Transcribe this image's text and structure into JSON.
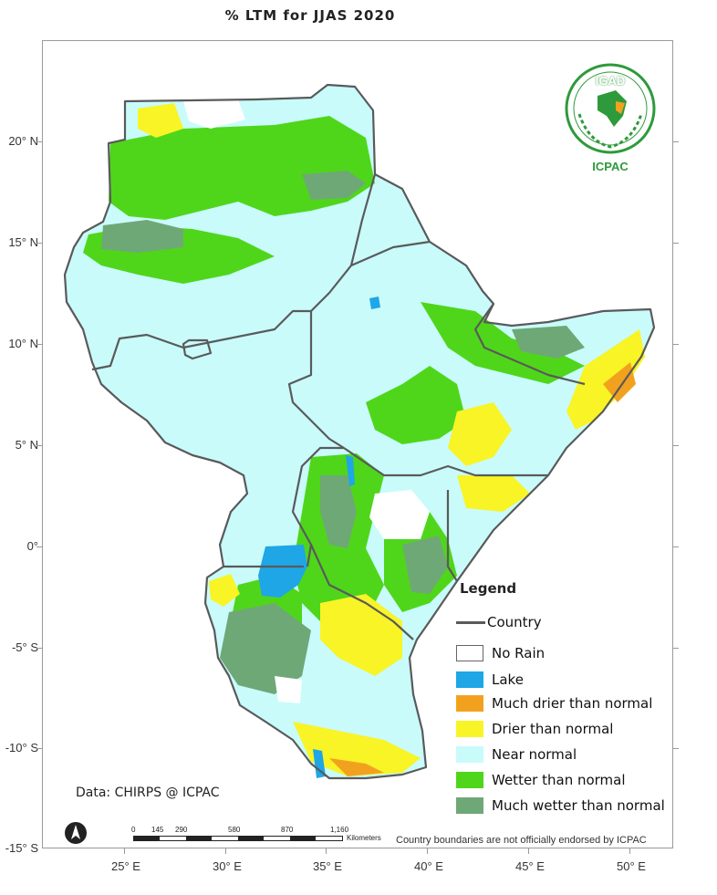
{
  "title": "% LTM for JJAS 2020",
  "axes": {
    "y_ticks": [
      "20° N",
      "15° N",
      "10° N",
      "5° N",
      "0°",
      "-5° S",
      "-10° S",
      "-15° S"
    ],
    "x_ticks": [
      "25° E",
      "30° E",
      "35° E",
      "40° E",
      "45° E",
      "50° E"
    ]
  },
  "legend": {
    "title": "Legend",
    "country_label": "Country",
    "items": [
      {
        "label": "No Rain",
        "color": "#ffffff"
      },
      {
        "label": "Lake",
        "color": "#1ea6e6"
      },
      {
        "label": "Much drier than normal",
        "color": "#f2a11f"
      },
      {
        "label": "Drier than normal",
        "color": "#f8f426"
      },
      {
        "label": "Near normal",
        "color": "#c9fbfb"
      },
      {
        "label": "Wetter than normal",
        "color": "#4fd61a"
      },
      {
        "label": "Much wetter than normal",
        "color": "#6fa877"
      }
    ]
  },
  "logo": {
    "name": "IGAD",
    "org": "ICPAC"
  },
  "data_credit": "Data: CHIRPS @ ICPAC",
  "scale_bar": {
    "labels": [
      "0",
      "145",
      "290",
      "580",
      "870",
      "1,160"
    ],
    "unit": "Kilometers"
  },
  "disclaimer": "Country boundaries are not officially endorsed by ICPAC",
  "colors": {
    "border": "#5a5a5a",
    "frame": "#9a9a9a"
  }
}
